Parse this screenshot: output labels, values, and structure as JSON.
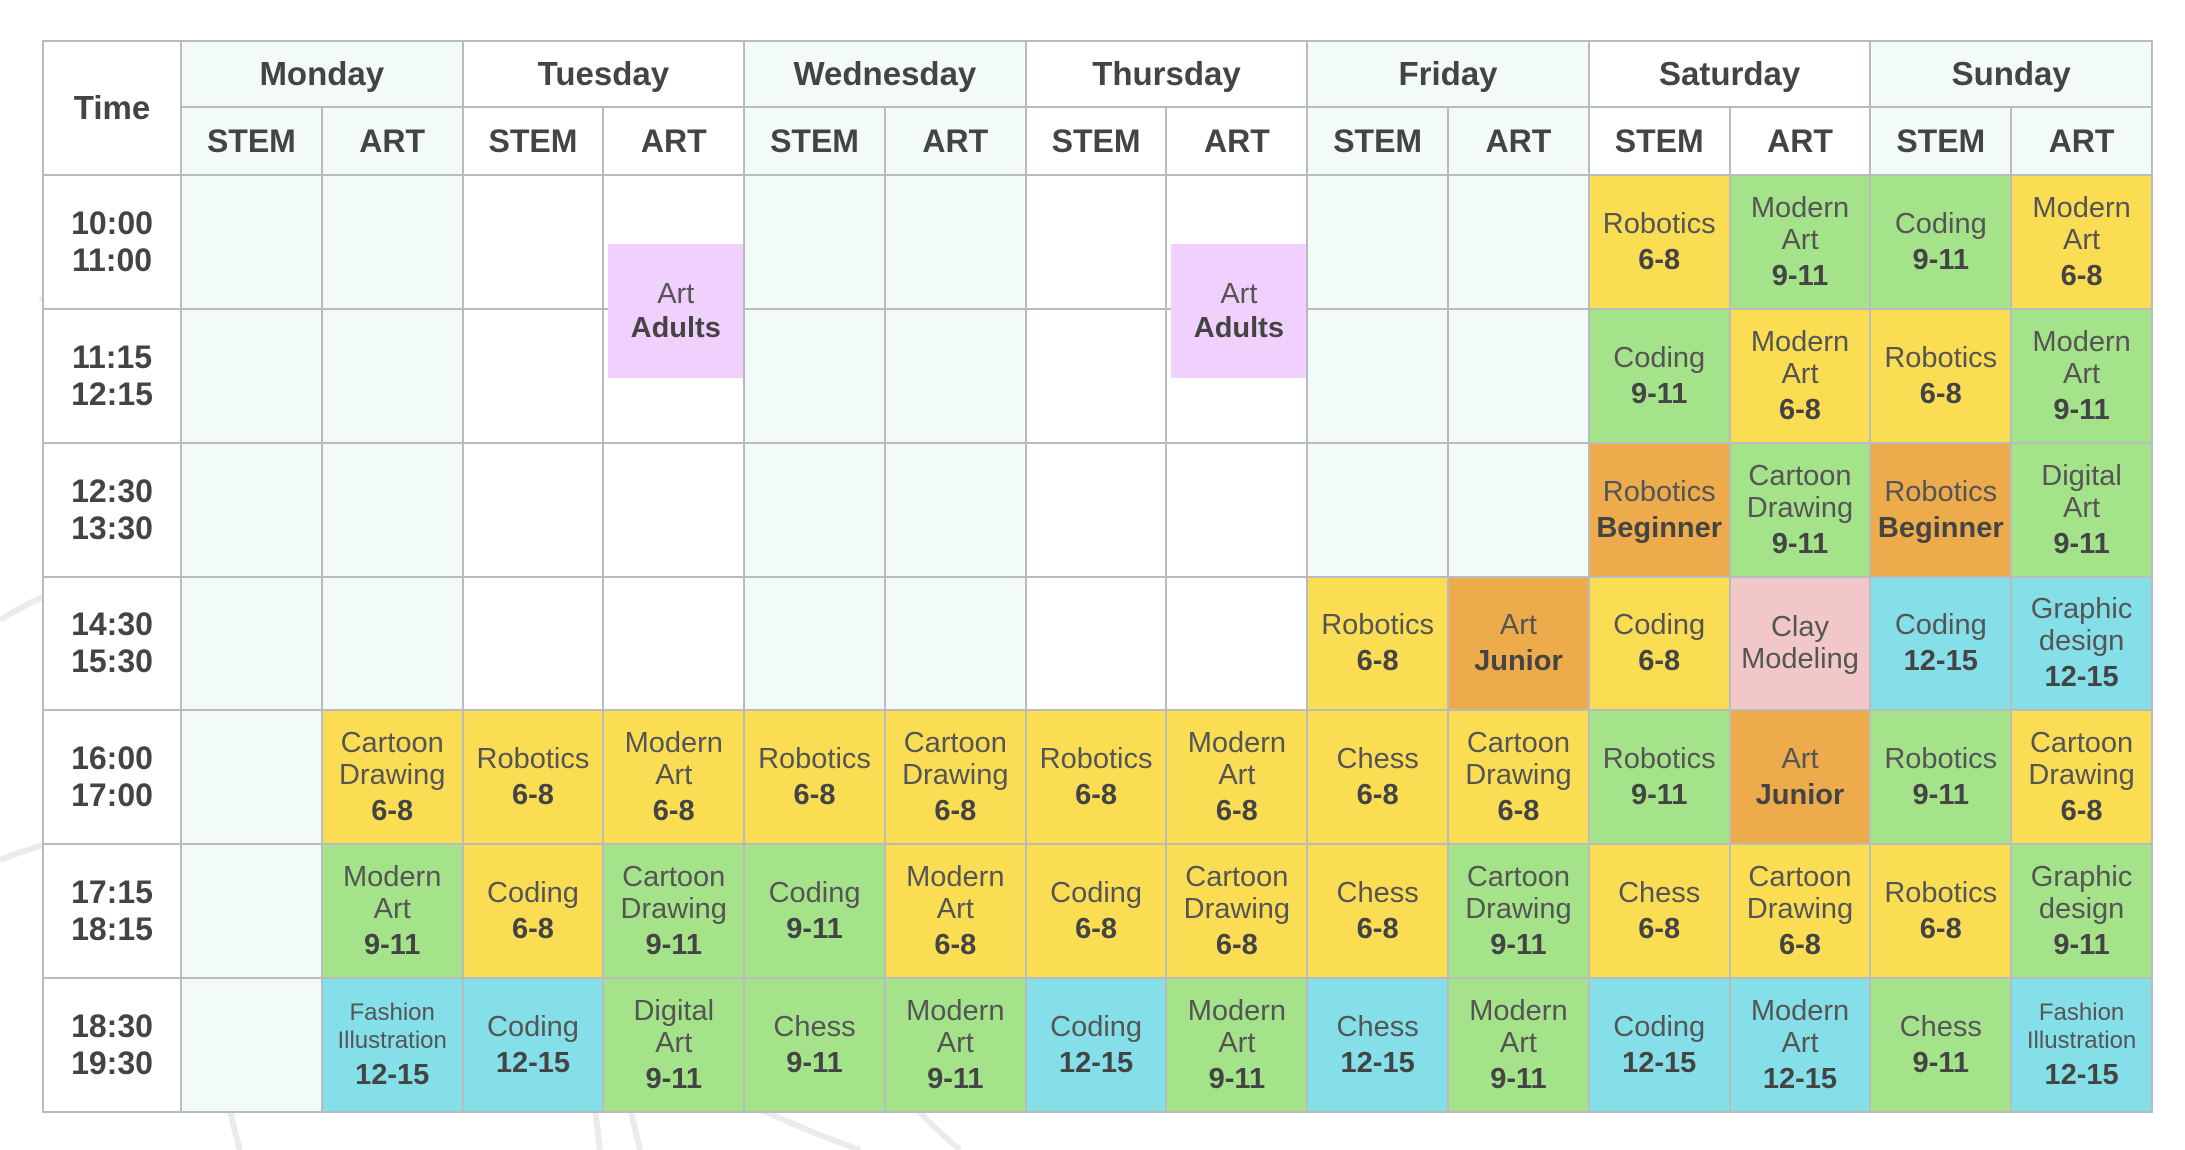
{
  "header": {
    "time_label": "Time",
    "days": [
      "Monday",
      "Tuesday",
      "Wednesday",
      "Thursday",
      "Friday",
      "Saturday",
      "Sunday"
    ],
    "sub_labels": [
      "STEM",
      "ART"
    ]
  },
  "colors": {
    "yellow": "#fbdd54",
    "green": "#a4e389",
    "orange": "#eeab4c",
    "cyan": "#85dfe8",
    "pink": "#f2c7c7",
    "purple": "#f0d0fc",
    "empty_tint": "#f3fbfa",
    "grid_line": "#b9bcbc"
  },
  "slots": [
    {
      "start": "10:00",
      "end": "11:00"
    },
    {
      "start": "11:15",
      "end": "12:15"
    },
    {
      "start": "12:30",
      "end": "13:30"
    },
    {
      "start": "14:30",
      "end": "15:30"
    },
    {
      "start": "16:00",
      "end": "17:00"
    },
    {
      "start": "17:15",
      "end": "18:15"
    },
    {
      "start": "18:30",
      "end": "19:30"
    }
  ],
  "adult_classes": [
    {
      "day": "Tuesday",
      "track": "ART",
      "title": "Art",
      "audience": "Adults",
      "color": "purple"
    },
    {
      "day": "Thursday",
      "track": "ART",
      "title": "Art",
      "audience": "Adults",
      "color": "purple"
    }
  ],
  "rows": [
    {
      "cells": [
        null,
        null,
        null,
        null,
        null,
        null,
        null,
        null,
        null,
        null,
        {
          "title": "Robotics",
          "age": "6-8",
          "color": "yellow"
        },
        {
          "title": "Modern Art",
          "age": "9-11",
          "color": "green"
        },
        {
          "title": "Coding",
          "age": "9-11",
          "color": "green"
        },
        {
          "title": "Modern Art",
          "age": "6-8",
          "color": "yellow"
        }
      ]
    },
    {
      "cells": [
        null,
        null,
        null,
        null,
        null,
        null,
        null,
        null,
        null,
        null,
        {
          "title": "Coding",
          "age": "9-11",
          "color": "green"
        },
        {
          "title": "Modern Art",
          "age": "6-8",
          "color": "yellow"
        },
        {
          "title": "Robotics",
          "age": "6-8",
          "color": "yellow"
        },
        {
          "title": "Modern Art",
          "age": "9-11",
          "color": "green"
        }
      ]
    },
    {
      "cells": [
        null,
        null,
        null,
        null,
        null,
        null,
        null,
        null,
        null,
        null,
        {
          "title": "Robotics",
          "age": "Beginner",
          "color": "orange"
        },
        {
          "title": "Cartoon Drawing",
          "age": "9-11",
          "color": "green"
        },
        {
          "title": "Robotics",
          "age": "Beginner",
          "color": "orange"
        },
        {
          "title": "Digital Art",
          "age": "9-11",
          "color": "green"
        }
      ]
    },
    {
      "cells": [
        null,
        null,
        null,
        null,
        null,
        null,
        null,
        null,
        {
          "title": "Robotics",
          "age": "6-8",
          "color": "yellow"
        },
        {
          "title": "Art",
          "age": "Junior",
          "color": "orange"
        },
        {
          "title": "Coding",
          "age": "6-8",
          "color": "yellow"
        },
        {
          "title": "Clay Modeling",
          "age": "",
          "color": "pink"
        },
        {
          "title": "Coding",
          "age": "12-15",
          "color": "cyan"
        },
        {
          "title": "Graphic design",
          "age": "12-15",
          "color": "cyan"
        }
      ]
    },
    {
      "cells": [
        null,
        {
          "title": "Cartoon Drawing",
          "age": "6-8",
          "color": "yellow"
        },
        {
          "title": "Robotics",
          "age": "6-8",
          "color": "yellow"
        },
        {
          "title": "Modern Art",
          "age": "6-8",
          "color": "yellow"
        },
        {
          "title": "Robotics",
          "age": "6-8",
          "color": "yellow"
        },
        {
          "title": "Cartoon Drawing",
          "age": "6-8",
          "color": "yellow"
        },
        {
          "title": "Robotics",
          "age": "6-8",
          "color": "yellow"
        },
        {
          "title": "Modern Art",
          "age": "6-8",
          "color": "yellow"
        },
        {
          "title": "Chess",
          "age": "6-8",
          "color": "yellow"
        },
        {
          "title": "Cartoon Drawing",
          "age": "6-8",
          "color": "yellow"
        },
        {
          "title": "Robotics",
          "age": "9-11",
          "color": "green"
        },
        {
          "title": "Art",
          "age": "Junior",
          "color": "orange"
        },
        {
          "title": "Robotics",
          "age": "9-11",
          "color": "green"
        },
        {
          "title": "Cartoon Drawing",
          "age": "6-8",
          "color": "yellow"
        }
      ]
    },
    {
      "cells": [
        null,
        {
          "title": "Modern Art",
          "age": "9-11",
          "color": "green"
        },
        {
          "title": "Coding",
          "age": "6-8",
          "color": "yellow"
        },
        {
          "title": "Cartoon Drawing",
          "age": "9-11",
          "color": "green"
        },
        {
          "title": "Coding",
          "age": "9-11",
          "color": "green"
        },
        {
          "title": "Modern Art",
          "age": "6-8",
          "color": "yellow"
        },
        {
          "title": "Coding",
          "age": "6-8",
          "color": "yellow"
        },
        {
          "title": "Cartoon Drawing",
          "age": "6-8",
          "color": "yellow"
        },
        {
          "title": "Chess",
          "age": "6-8",
          "color": "yellow"
        },
        {
          "title": "Cartoon Drawing",
          "age": "9-11",
          "color": "green"
        },
        {
          "title": "Chess",
          "age": "6-8",
          "color": "yellow"
        },
        {
          "title": "Cartoon Drawing",
          "age": "6-8",
          "color": "yellow"
        },
        {
          "title": "Robotics",
          "age": "6-8",
          "color": "yellow"
        },
        {
          "title": "Graphic design",
          "age": "9-11",
          "color": "green"
        }
      ]
    },
    {
      "cells": [
        null,
        {
          "title": "Fashion Illustration",
          "age": "12-15",
          "color": "cyan",
          "small": true
        },
        {
          "title": "Coding",
          "age": "12-15",
          "color": "cyan"
        },
        {
          "title": "Digital Art",
          "age": "9-11",
          "color": "green"
        },
        {
          "title": "Chess",
          "age": "9-11",
          "color": "green"
        },
        {
          "title": "Modern Art",
          "age": "9-11",
          "color": "green"
        },
        {
          "title": "Coding",
          "age": "12-15",
          "color": "cyan"
        },
        {
          "title": "Modern Art",
          "age": "9-11",
          "color": "green"
        },
        {
          "title": "Chess",
          "age": "12-15",
          "color": "cyan"
        },
        {
          "title": "Modern Art",
          "age": "9-11",
          "color": "green"
        },
        {
          "title": "Coding",
          "age": "12-15",
          "color": "cyan"
        },
        {
          "title": "Modern Art",
          "age": "12-15",
          "color": "cyan"
        },
        {
          "title": "Chess",
          "age": "9-11",
          "color": "green"
        },
        {
          "title": "Fashion Illustration",
          "age": "12-15",
          "color": "cyan",
          "small": true
        }
      ]
    }
  ]
}
